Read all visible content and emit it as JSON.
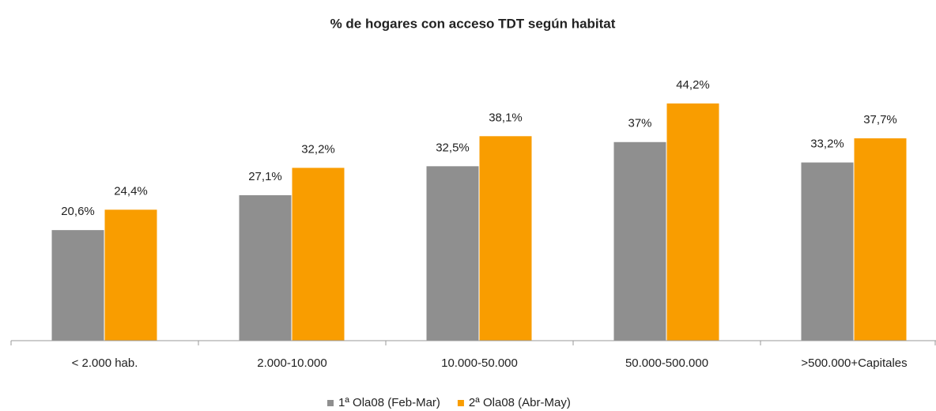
{
  "chart_data": {
    "type": "bar",
    "title": "% de hogares con acceso TDT según habitat",
    "categories": [
      "< 2.000 hab.",
      "2.000-10.000",
      "10.000-50.000",
      "50.000-500.000",
      ">500.000+Capitales"
    ],
    "series": [
      {
        "name": "1ª Ola08 (Feb-Mar)",
        "color": "#8f8f8f",
        "values": [
          20.6,
          27.1,
          32.5,
          37,
          33.2
        ],
        "value_labels": [
          "20,6%",
          "27,1%",
          "32,5%",
          "37%",
          "33,2%"
        ]
      },
      {
        "name": "2ª Ola08 (Abr-May)",
        "color": "#f99d00",
        "values": [
          24.4,
          32.2,
          38.1,
          44.2,
          37.7
        ],
        "value_labels": [
          "24,4%",
          "32,2%",
          "38,1%",
          "44,2%",
          "37,7%"
        ]
      }
    ],
    "ylim": [
      0,
      50
    ],
    "legend": "bottom"
  }
}
